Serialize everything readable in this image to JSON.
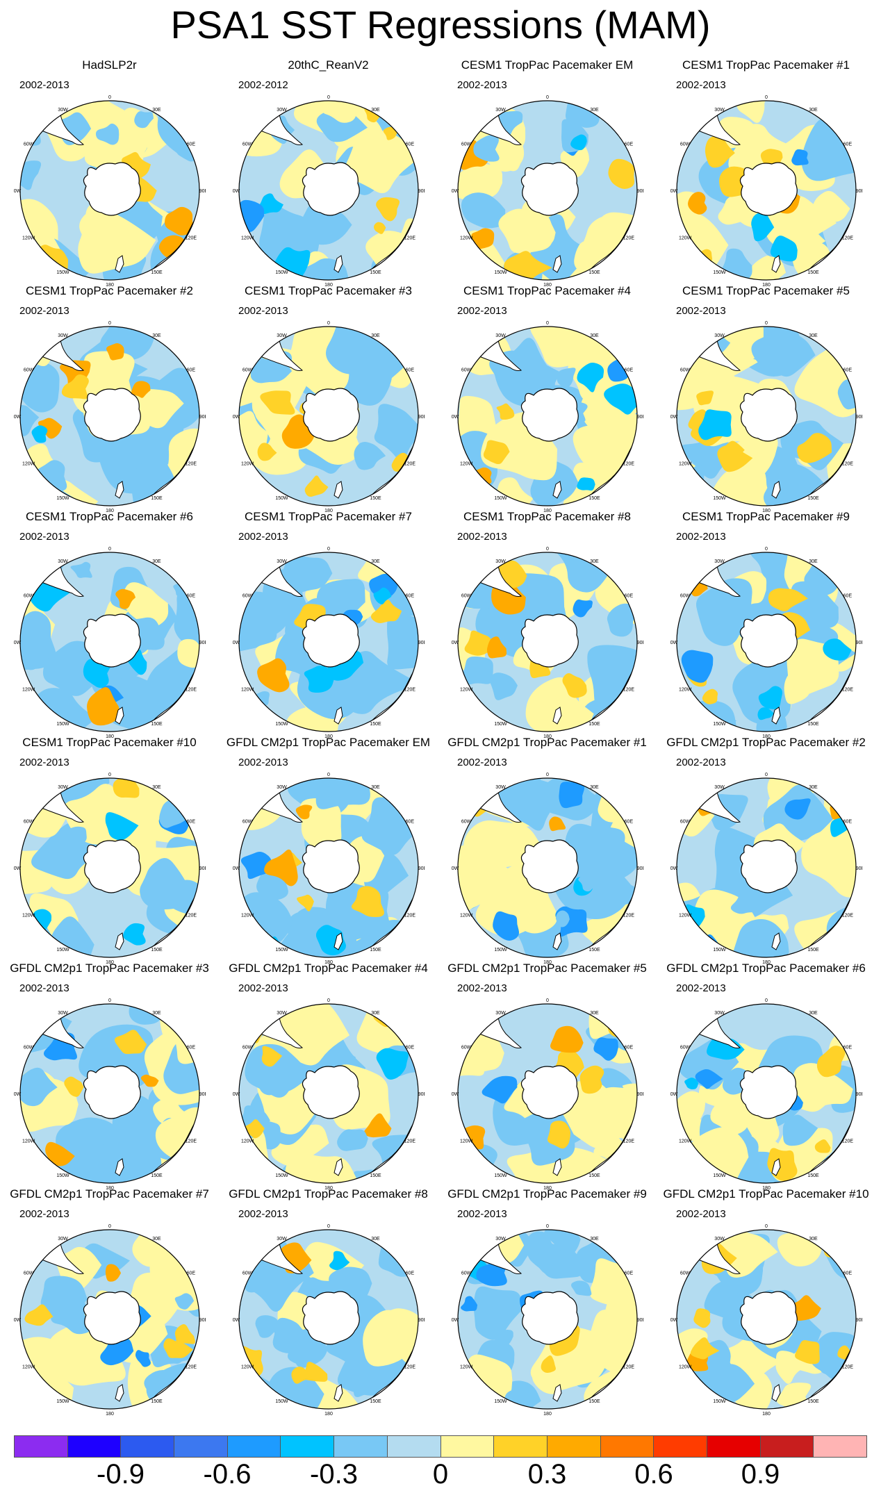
{
  "title": "PSA1 SST Regressions (MAM)",
  "panels": [
    {
      "title": "HadSLP2r",
      "period": "2002-2013"
    },
    {
      "title": "20thC_ReanV2",
      "period": "2002-2012"
    },
    {
      "title": "CESM1 TropPac Pacemaker EM",
      "period": "2002-2013"
    },
    {
      "title": "CESM1 TropPac Pacemaker #1",
      "period": "2002-2013"
    },
    {
      "title": "CESM1 TropPac Pacemaker #2",
      "period": "2002-2013"
    },
    {
      "title": "CESM1 TropPac Pacemaker #3",
      "period": "2002-2013"
    },
    {
      "title": "CESM1 TropPac Pacemaker #4",
      "period": "2002-2013"
    },
    {
      "title": "CESM1 TropPac Pacemaker #5",
      "period": "2002-2013"
    },
    {
      "title": "CESM1 TropPac Pacemaker #6",
      "period": "2002-2013"
    },
    {
      "title": "CESM1 TropPac Pacemaker #7",
      "period": "2002-2013"
    },
    {
      "title": "CESM1 TropPac Pacemaker #8",
      "period": "2002-2013"
    },
    {
      "title": "CESM1 TropPac Pacemaker #9",
      "period": "2002-2013"
    },
    {
      "title": "CESM1 TropPac Pacemaker #10",
      "period": "2002-2013"
    },
    {
      "title": "GFDL CM2p1 TropPac Pacemaker EM",
      "period": "2002-2013"
    },
    {
      "title": "GFDL CM2p1 TropPac Pacemaker #1",
      "period": "2002-2013"
    },
    {
      "title": "GFDL CM2p1 TropPac Pacemaker #2",
      "period": "2002-2013"
    },
    {
      "title": "GFDL CM2p1 TropPac Pacemaker #3",
      "period": "2002-2013"
    },
    {
      "title": "GFDL CM2p1 TropPac Pacemaker #4",
      "period": "2002-2013"
    },
    {
      "title": "GFDL CM2p1 TropPac Pacemaker #5",
      "period": "2002-2013"
    },
    {
      "title": "GFDL CM2p1 TropPac Pacemaker #6",
      "period": "2002-2013"
    },
    {
      "title": "GFDL CM2p1 TropPac Pacemaker #7",
      "period": "2002-2013"
    },
    {
      "title": "GFDL CM2p1 TropPac Pacemaker #8",
      "period": "2002-2013"
    },
    {
      "title": "GFDL CM2p1 TropPac Pacemaker #9",
      "period": "2002-2013"
    },
    {
      "title": "GFDL CM2p1 TropPac Pacemaker #10",
      "period": "2002-2013"
    }
  ],
  "longitude_labels": [
    "0",
    "30E",
    "60E",
    "90E",
    "120E",
    "150E",
    "180",
    "150W",
    "120W",
    "90W",
    "60W",
    "30W"
  ],
  "colorbar": {
    "colors": [
      "#8c2cf0",
      "#1e00ff",
      "#2c5af0",
      "#3c78f0",
      "#1e9bff",
      "#00c3ff",
      "#78c8f5",
      "#b4dcf0",
      "#fff8a0",
      "#ffd228",
      "#ffaa00",
      "#ff7800",
      "#ff3c00",
      "#e60000",
      "#c81e1e",
      "#ffb4b4"
    ],
    "tick_labels": [
      "-0.9",
      "-0.6",
      "-0.3",
      "0",
      "0.3",
      "0.6",
      "0.9"
    ]
  },
  "chart_data": {
    "type": "heatmap",
    "title": "PSA1 SST Regressions (MAM)",
    "projection": "south polar stereographic",
    "panel_count": 24,
    "layout": "6 rows x 4 columns",
    "levels": [
      -1.05,
      -0.9,
      -0.75,
      -0.6,
      -0.45,
      -0.3,
      -0.15,
      0,
      0.15,
      0.3,
      0.45,
      0.6,
      0.75,
      0.9,
      1.05
    ],
    "colorbar_ticks": [
      -0.9,
      -0.6,
      -0.3,
      0,
      0.3,
      0.6,
      0.9
    ]
  }
}
